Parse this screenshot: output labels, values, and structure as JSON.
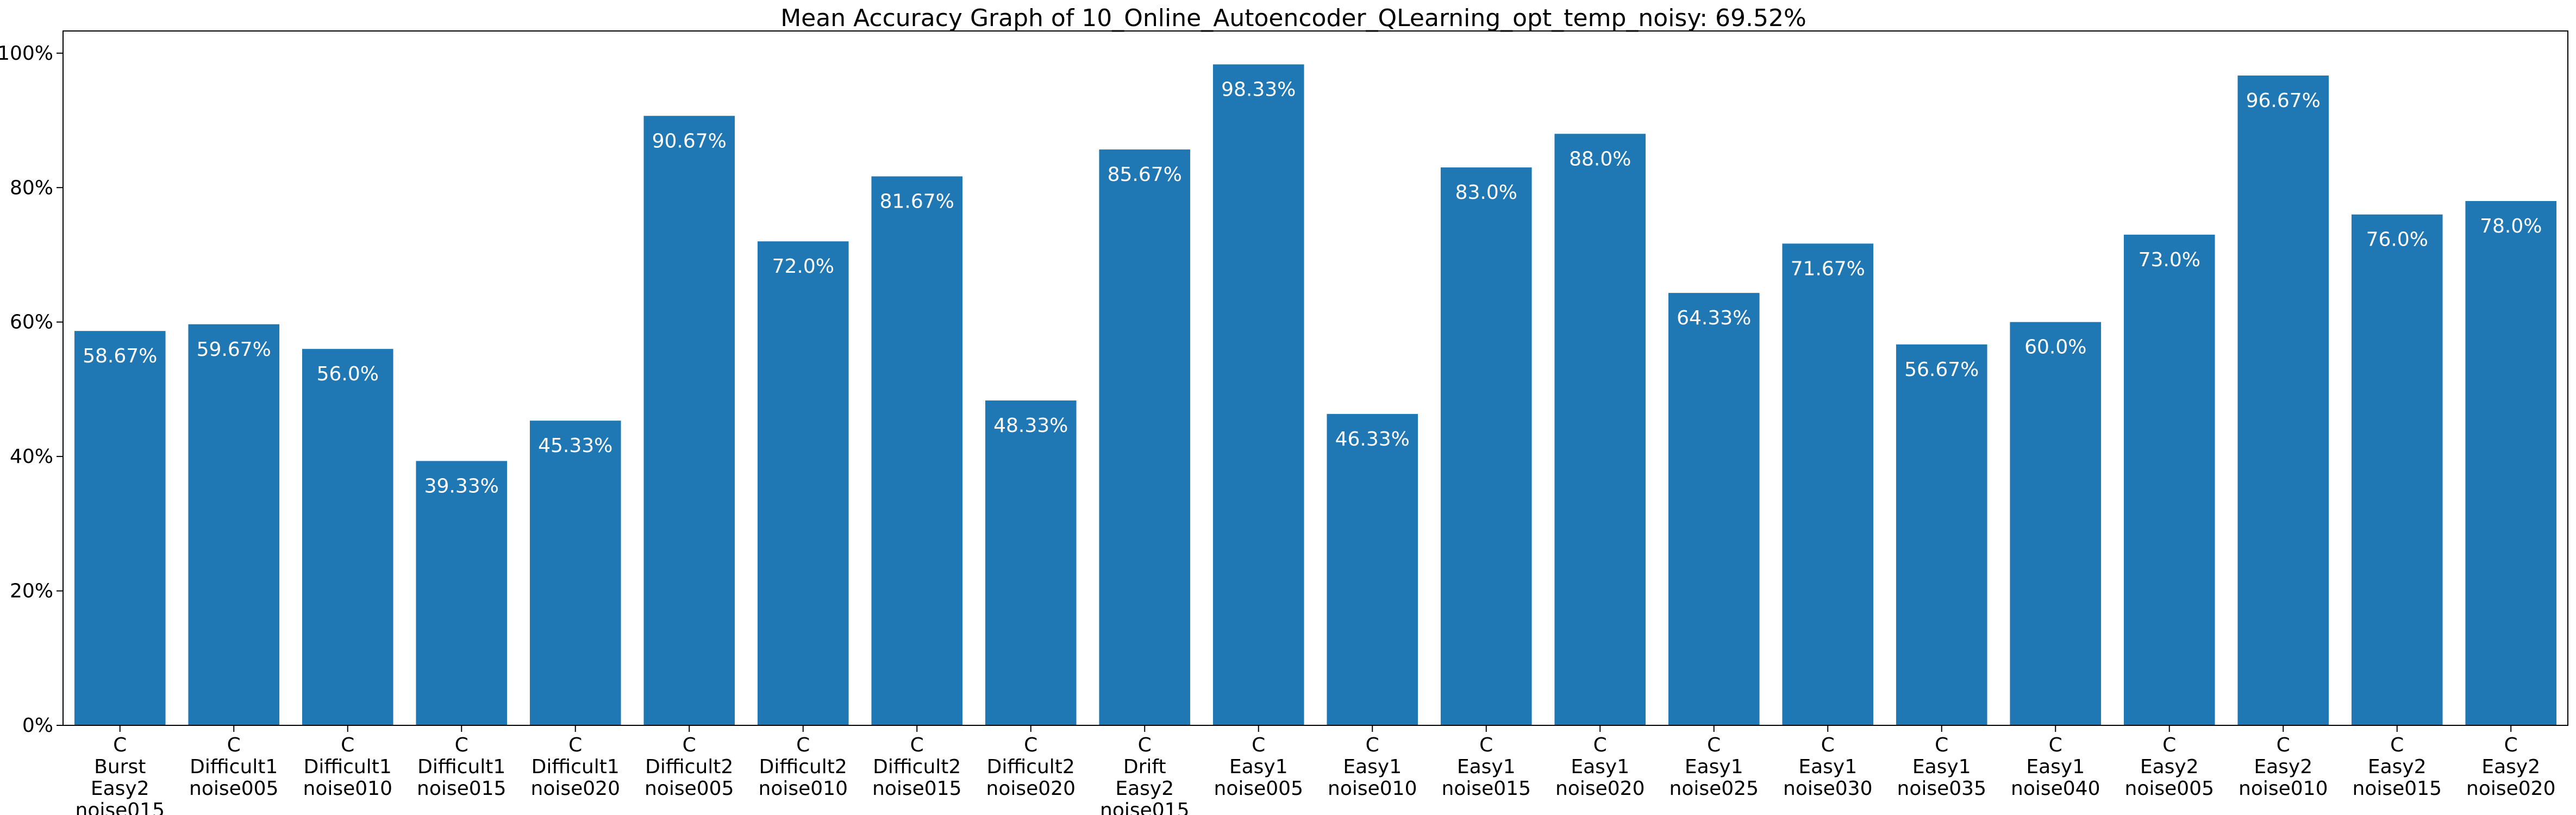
{
  "chart_data": {
    "type": "bar",
    "title": "Mean Accuracy Graph of 10_Online_Autoencoder_QLearning_opt_temp_noisy: 69.52%",
    "xlabel": "",
    "ylabel": "",
    "ylim": [
      0,
      103.3
    ],
    "yticks": [
      0,
      20,
      40,
      60,
      80,
      100
    ],
    "ytick_labels": [
      "0%",
      "20%",
      "40%",
      "60%",
      "80%",
      "100%"
    ],
    "grid": false,
    "bar_color": "#1f77b4",
    "label_color": "#ffffff",
    "categories": [
      [
        "C",
        "Burst",
        "Easy2",
        "noise015"
      ],
      [
        "C",
        "Difficult1",
        "noise005"
      ],
      [
        "C",
        "Difficult1",
        "noise010"
      ],
      [
        "C",
        "Difficult1",
        "noise015"
      ],
      [
        "C",
        "Difficult1",
        "noise020"
      ],
      [
        "C",
        "Difficult2",
        "noise005"
      ],
      [
        "C",
        "Difficult2",
        "noise010"
      ],
      [
        "C",
        "Difficult2",
        "noise015"
      ],
      [
        "C",
        "Difficult2",
        "noise020"
      ],
      [
        "C",
        "Drift",
        "Easy2",
        "noise015"
      ],
      [
        "C",
        "Easy1",
        "noise005"
      ],
      [
        "C",
        "Easy1",
        "noise010"
      ],
      [
        "C",
        "Easy1",
        "noise015"
      ],
      [
        "C",
        "Easy1",
        "noise020"
      ],
      [
        "C",
        "Easy1",
        "noise025"
      ],
      [
        "C",
        "Easy1",
        "noise030"
      ],
      [
        "C",
        "Easy1",
        "noise035"
      ],
      [
        "C",
        "Easy1",
        "noise040"
      ],
      [
        "C",
        "Easy2",
        "noise005"
      ],
      [
        "C",
        "Easy2",
        "noise010"
      ],
      [
        "C",
        "Easy2",
        "noise015"
      ],
      [
        "C",
        "Easy2",
        "noise020"
      ]
    ],
    "values": [
      58.67,
      59.67,
      56.0,
      39.33,
      45.33,
      90.67,
      72.0,
      81.67,
      48.33,
      85.67,
      98.33,
      46.33,
      83.0,
      88.0,
      64.33,
      71.67,
      56.67,
      60.0,
      73.0,
      96.67,
      76.0,
      78.0
    ],
    "value_labels": [
      "58.67%",
      "59.67%",
      "56.0%",
      "39.33%",
      "45.33%",
      "90.67%",
      "72.0%",
      "81.67%",
      "48.33%",
      "85.67%",
      "98.33%",
      "46.33%",
      "83.0%",
      "88.0%",
      "64.33%",
      "71.67%",
      "56.67%",
      "60.0%",
      "73.0%",
      "96.67%",
      "76.0%",
      "78.0%"
    ]
  }
}
